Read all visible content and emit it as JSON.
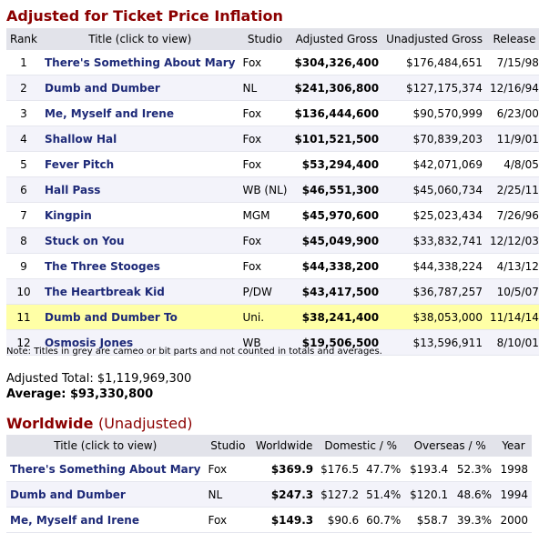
{
  "sections": {
    "adjusted_title": "Adjusted for Ticket Price Inflation",
    "worldwide_title": "Worldwide",
    "worldwide_subtitle": "(Unadjusted)"
  },
  "adjusted_table": {
    "headers": [
      "Rank",
      "Title (click to view)",
      "Studio",
      "Adjusted Gross",
      "Unadjusted Gross",
      "Release"
    ],
    "rows": [
      {
        "rank": "1",
        "title": "There's Something About Mary",
        "studio": "Fox",
        "adjusted": "$304,326,400",
        "unadjusted": "$176,484,651",
        "release": "7/15/98"
      },
      {
        "rank": "2",
        "title": "Dumb and Dumber",
        "studio": "NL",
        "adjusted": "$241,306,800",
        "unadjusted": "$127,175,374",
        "release": "12/16/94"
      },
      {
        "rank": "3",
        "title": "Me, Myself and Irene",
        "studio": "Fox",
        "adjusted": "$136,444,600",
        "unadjusted": "$90,570,999",
        "release": "6/23/00"
      },
      {
        "rank": "4",
        "title": "Shallow Hal",
        "studio": "Fox",
        "adjusted": "$101,521,500",
        "unadjusted": "$70,839,203",
        "release": "11/9/01"
      },
      {
        "rank": "5",
        "title": "Fever Pitch",
        "studio": "Fox",
        "adjusted": "$53,294,400",
        "unadjusted": "$42,071,069",
        "release": "4/8/05"
      },
      {
        "rank": "6",
        "title": "Hall Pass",
        "studio": "WB (NL)",
        "adjusted": "$46,551,300",
        "unadjusted": "$45,060,734",
        "release": "2/25/11"
      },
      {
        "rank": "7",
        "title": "Kingpin",
        "studio": "MGM",
        "adjusted": "$45,970,600",
        "unadjusted": "$25,023,434",
        "release": "7/26/96"
      },
      {
        "rank": "8",
        "title": "Stuck on You",
        "studio": "Fox",
        "adjusted": "$45,049,900",
        "unadjusted": "$33,832,741",
        "release": "12/12/03"
      },
      {
        "rank": "9",
        "title": "The Three Stooges",
        "studio": "Fox",
        "adjusted": "$44,338,200",
        "unadjusted": "$44,338,224",
        "release": "4/13/12"
      },
      {
        "rank": "10",
        "title": "The Heartbreak Kid",
        "studio": "P/DW",
        "adjusted": "$43,417,500",
        "unadjusted": "$36,787,257",
        "release": "10/5/07"
      },
      {
        "rank": "11",
        "title": "Dumb and Dumber To",
        "studio": "Uni.",
        "adjusted": "$38,241,400",
        "unadjusted": "$38,053,000",
        "release": "11/14/14"
      },
      {
        "rank": "12",
        "title": "Osmosis Jones",
        "studio": "WB",
        "adjusted": "$19,506,500",
        "unadjusted": "$13,596,911",
        "release": "8/10/01"
      }
    ],
    "highlighted_rank": "11",
    "highlight_color": "#ffffa6"
  },
  "note": "Note: Titles in grey are cameo or bit parts and not counted in totals and averages.",
  "totals": {
    "adjusted_total_label": "Adjusted Total:",
    "adjusted_total_value": "$1,119,969,300",
    "average_label": "Average:",
    "average_value": "$93,330,800"
  },
  "worldwide_table": {
    "headers": [
      "Title (click to view)",
      "Studio",
      "Worldwide",
      "Domestic / %",
      "Overseas / %",
      "Year"
    ],
    "rows": [
      {
        "title": "There's Something About Mary",
        "studio": "Fox",
        "worldwide": "$369.9",
        "domestic": "$176.5",
        "domestic_pct": "47.7%",
        "overseas": "$193.4",
        "overseas_pct": "52.3%",
        "year": "1998"
      },
      {
        "title": "Dumb and Dumber",
        "studio": "NL",
        "worldwide": "$247.3",
        "domestic": "$127.2",
        "domestic_pct": "51.4%",
        "overseas": "$120.1",
        "overseas_pct": "48.6%",
        "year": "1994"
      },
      {
        "title": "Me, Myself and Irene",
        "studio": "Fox",
        "worldwide": "$149.3",
        "domestic": "$90.6",
        "domestic_pct": "60.7%",
        "overseas": "$58.7",
        "overseas_pct": "39.3%",
        "year": "2000"
      }
    ]
  },
  "colors": {
    "section_title": "#8b0000",
    "link": "#1e2a78",
    "header_bg": "#e2e3ea",
    "alt_row_bg": "#f3f3fa"
  }
}
